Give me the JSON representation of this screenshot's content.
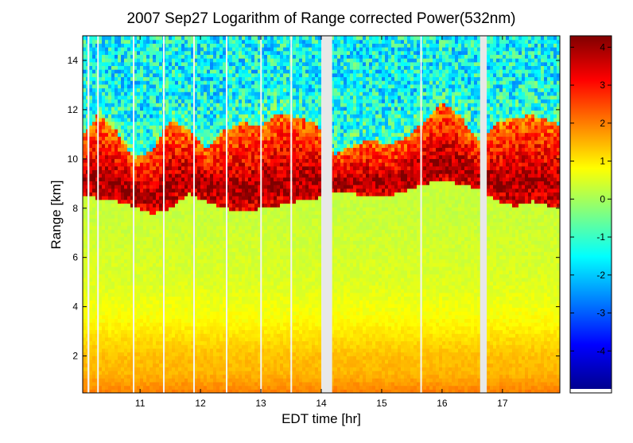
{
  "chart_data": {
    "type": "heatmap",
    "title": "2007 Sep27  Logarithm of Range corrected Power(532nm)",
    "xlabel": "EDT time [hr]",
    "ylabel": "Range [km]",
    "xlim": [
      10.05,
      17.95
    ],
    "ylim": [
      0.5,
      15.0
    ],
    "x_ticks": [
      "11",
      "12",
      "13",
      "14",
      "15",
      "16",
      "17"
    ],
    "x_tick_values": [
      11,
      12,
      13,
      14,
      15,
      16,
      17
    ],
    "y_ticks": [
      "2",
      "4",
      "6",
      "8",
      "10",
      "12",
      "14"
    ],
    "y_tick_values": [
      2,
      4,
      6,
      8,
      10,
      12,
      14
    ],
    "colorbar": {
      "ticks": [
        "4",
        "3",
        "2",
        "1",
        "0",
        "-1",
        "-2",
        "-3",
        "-4"
      ],
      "tick_values": [
        4,
        3,
        2,
        1,
        0,
        -1,
        -2,
        -3,
        -4
      ],
      "clim": [
        -5.0,
        4.3
      ],
      "colormap": [
        "#00008f",
        "#0000ff",
        "#0080ff",
        "#00ffff",
        "#80ff80",
        "#ffff00",
        "#ff8000",
        "#ff0000",
        "#800000"
      ]
    },
    "cloud_layer": {
      "description_values": "cloud base range [km] and cloud top range [km] by time [hr]",
      "time": [
        10.05,
        10.3,
        10.6,
        10.9,
        11.2,
        11.5,
        11.8,
        12.1,
        12.4,
        12.7,
        13.0,
        13.3,
        13.6,
        13.9,
        14.2,
        14.5,
        14.8,
        15.1,
        15.4,
        15.7,
        16.0,
        16.3,
        16.6,
        16.9,
        17.2,
        17.5,
        17.95
      ],
      "base": [
        8.6,
        8.4,
        8.3,
        8.1,
        7.8,
        8.0,
        8.6,
        8.3,
        8.0,
        7.9,
        8.0,
        8.1,
        8.3,
        8.4,
        8.7,
        8.6,
        8.5,
        8.5,
        8.7,
        9.0,
        9.1,
        9.0,
        8.8,
        8.3,
        8.1,
        8.3,
        8.0
      ],
      "top": [
        11.0,
        11.8,
        11.2,
        10.0,
        10.4,
        11.6,
        11.2,
        10.4,
        11.2,
        11.5,
        11.3,
        11.9,
        11.7,
        11.5,
        10.2,
        10.5,
        10.8,
        10.6,
        10.9,
        11.5,
        12.3,
        11.8,
        10.7,
        11.5,
        11.7,
        11.8,
        11.4
      ],
      "peak_value": 4.0
    },
    "boundary_layer": {
      "top_range": 2.5,
      "values_by_range": [
        [
          0.5,
          2.0
        ],
        [
          1.3,
          1.5
        ],
        [
          2.0,
          1.4
        ],
        [
          2.5,
          1.2
        ],
        [
          3.5,
          0.8
        ],
        [
          5.0,
          0.5
        ],
        [
          8.0,
          0.3
        ]
      ]
    },
    "free_troposphere_value": -1.0,
    "data_gaps": [
      {
        "start": 10.13,
        "end": 10.16
      },
      {
        "start": 10.29,
        "end": 10.31
      },
      {
        "start": 10.88,
        "end": 10.9
      },
      {
        "start": 11.38,
        "end": 11.4
      },
      {
        "start": 11.88,
        "end": 11.9
      },
      {
        "start": 12.42,
        "end": 12.44
      },
      {
        "start": 12.99,
        "end": 13.01
      },
      {
        "start": 13.49,
        "end": 13.51
      },
      {
        "start": 14.0,
        "end": 14.18
      },
      {
        "start": 15.64,
        "end": 15.66
      },
      {
        "start": 16.63,
        "end": 16.74
      }
    ]
  }
}
